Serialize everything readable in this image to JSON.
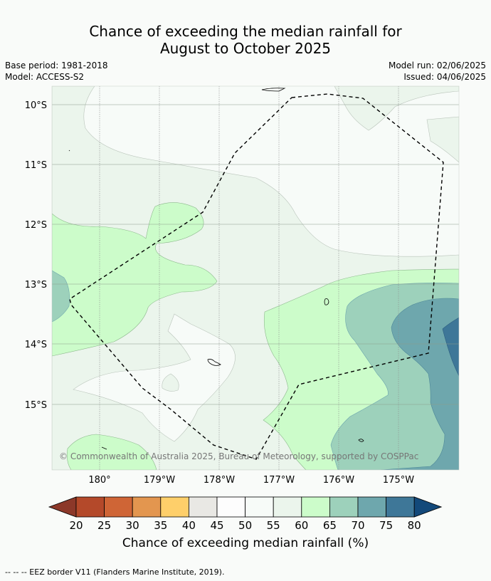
{
  "title": {
    "line1": "Chance of exceeding the median rainfall for",
    "line2": "August to October 2025"
  },
  "meta": {
    "base_period": "Base period: 1981-2018",
    "model": "Model: ACCESS-S2",
    "model_run": "Model run: 02/06/2025",
    "issued": "Issued: 04/06/2025"
  },
  "map": {
    "lat_labels": [
      "10°S",
      "11°S",
      "12°S",
      "13°S",
      "14°S",
      "15°S"
    ],
    "lon_labels": [
      "180°",
      "179°W",
      "178°W",
      "177°W",
      "176°W",
      "175°W"
    ],
    "copyright": "© Commonwealth of Australia 2025, Bureau of Meteorology, supported by COSPPac"
  },
  "colorbar": {
    "labels": [
      "20",
      "25",
      "30",
      "35",
      "40",
      "45",
      "50",
      "55",
      "60",
      "65",
      "70",
      "75",
      "80"
    ],
    "colors": [
      "#b4492a",
      "#cf6536",
      "#e3964f",
      "#fecf6a",
      "#e9e8e4",
      "#fdfdfd",
      "#f7fbf8",
      "#ebf5ec",
      "#ccfcca",
      "#9dd1bb",
      "#6ea7ad",
      "#3e7798"
    ],
    "under_color": "#8c3829",
    "over_color": "#13497a",
    "title": "Chance of exceeding median rainfall (%)"
  },
  "footnote": "--  --  -- EEZ border V11 (Flanders Marine Institute, 2019)."
}
